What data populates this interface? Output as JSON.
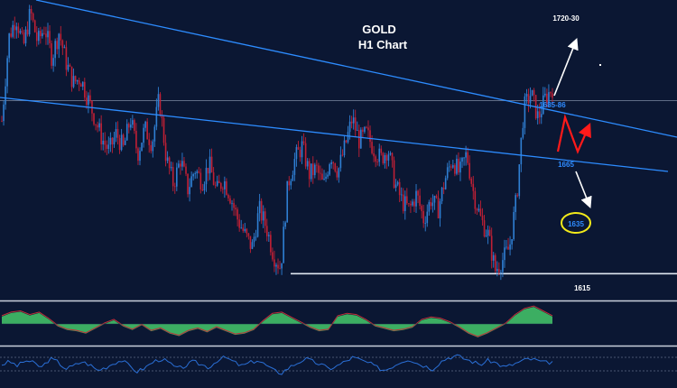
{
  "chart_data": {
    "type": "candlestick",
    "title": "GOLD",
    "subtitle": "H1 Chart",
    "annotations": {
      "target_up": "1720-30",
      "resistance": "1685-86",
      "pivot": "1665",
      "target_down": "1635",
      "support": "1615"
    },
    "price_range": [
      1608,
      1722
    ],
    "levels": {
      "horizontal": 1683,
      "support_line": 1615
    },
    "price_path": [
      1675,
      1708,
      1716,
      1704,
      1718,
      1706,
      1712,
      1700,
      1710,
      1698,
      1690,
      1692,
      1684,
      1676,
      1668,
      1663,
      1670,
      1664,
      1676,
      1662,
      1672,
      1666,
      1684,
      1660,
      1650,
      1660,
      1648,
      1656,
      1651,
      1658,
      1647,
      1652,
      1645,
      1636,
      1630,
      1625,
      1640,
      1633,
      1622,
      1617,
      1650,
      1660,
      1665,
      1654,
      1656,
      1649,
      1662,
      1655,
      1665,
      1676,
      1667,
      1670,
      1664,
      1660,
      1664,
      1650,
      1643,
      1640,
      1646,
      1636,
      1644,
      1640,
      1652,
      1660,
      1654,
      1662,
      1646,
      1636,
      1630,
      1616,
      1620,
      1625,
      1645,
      1680,
      1686,
      1676,
      1684,
      1688
    ],
    "oscillator1": [
      6,
      9,
      10,
      7,
      9,
      4,
      -2,
      -5,
      -6,
      -8,
      -4,
      0,
      3,
      -2,
      -5,
      -1,
      -6,
      -4,
      -8,
      -10,
      -6,
      -4,
      -7,
      -3,
      -6,
      -9,
      -8,
      -5,
      2,
      8,
      9,
      5,
      1,
      -3,
      -6,
      -5,
      6,
      8,
      7,
      3,
      -2,
      -4,
      -6,
      -5,
      -3,
      3,
      5,
      4,
      1,
      -3,
      -8,
      -11,
      -8,
      -4,
      0,
      7,
      12,
      14,
      10,
      6
    ],
    "oscillator2": [
      0,
      2,
      -1,
      3,
      1,
      -2,
      4,
      2,
      -3,
      -1,
      2,
      0,
      -4,
      -2,
      1,
      3,
      -1,
      -5,
      -2,
      2,
      4,
      1,
      -3,
      -1,
      2,
      0,
      -2,
      3,
      5,
      2,
      -1,
      1,
      3,
      0,
      -4,
      -6,
      -2,
      1,
      4,
      2,
      0,
      -3,
      -1,
      2,
      5,
      3,
      1,
      -2,
      -4,
      -1,
      2,
      4,
      1,
      -1,
      -3,
      2,
      5,
      6,
      4,
      2,
      0,
      3,
      1,
      -2,
      0,
      2,
      4,
      3,
      1,
      2
    ]
  },
  "colors": {
    "background": "#0b1733",
    "bull": "#2f7fd3",
    "bear": "#c02035",
    "trendline": "#2d8cff",
    "arrow_up": "#ffffff",
    "arrow_zigzag": "#ff1a1a",
    "ellipse": "#f2ea1a",
    "osc_fill": "#3cae62",
    "osc_line": "#c0303a",
    "osc2_line": "#2a6fd6"
  }
}
